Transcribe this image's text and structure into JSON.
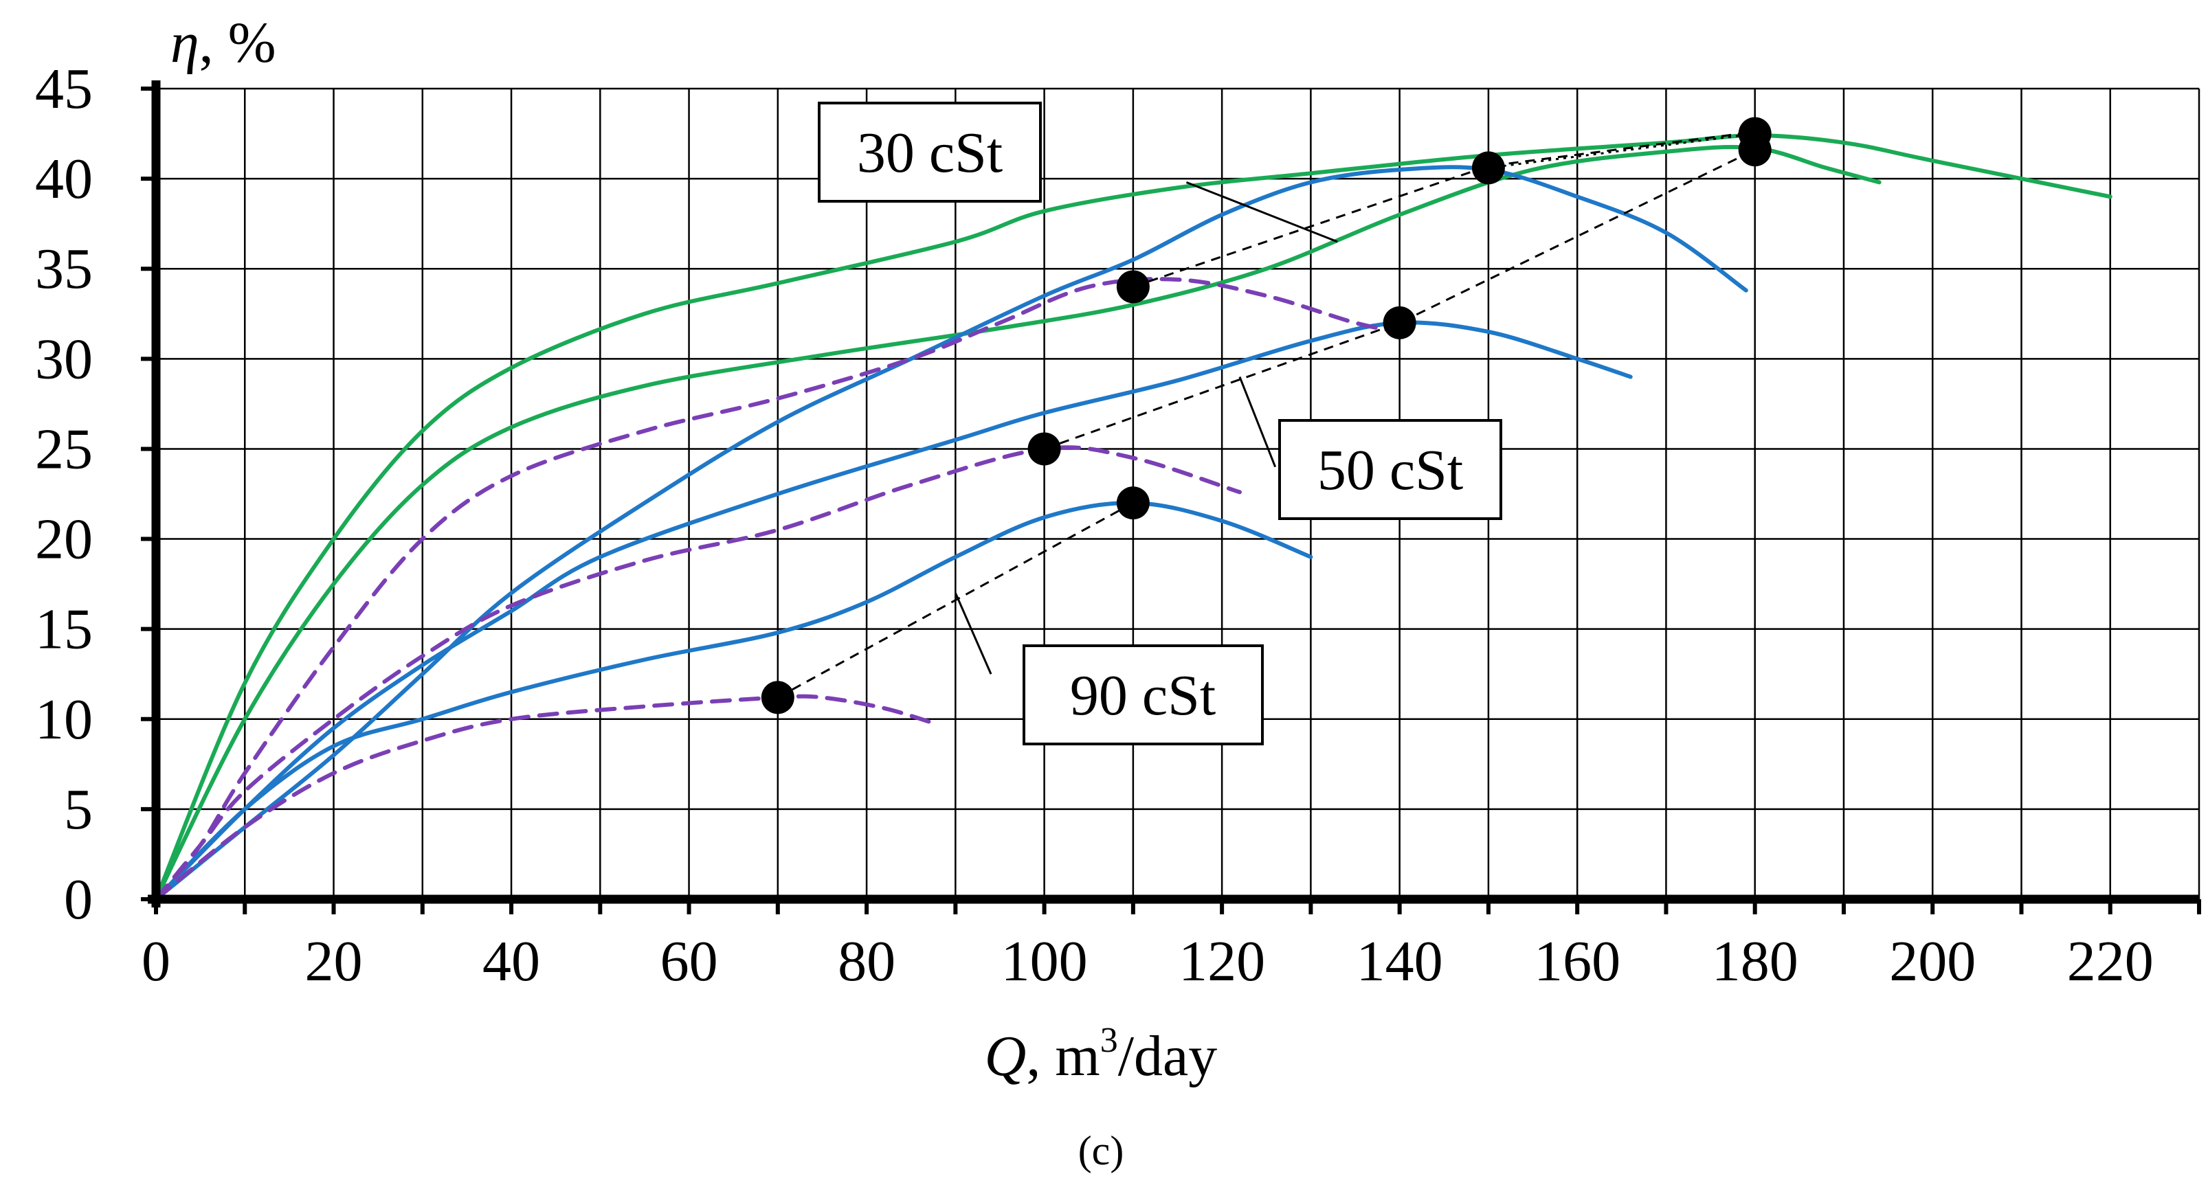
{
  "chart_data": {
    "type": "line",
    "title": "",
    "caption": "(c)",
    "ylabel_symbol": "η",
    "ylabel_unit": ", %",
    "xlabel_symbol": "Q",
    "xlabel_unit": ", m",
    "xlabel_sup": "3",
    "xlabel_tail": "/day",
    "xlim": [
      0,
      230
    ],
    "ylim": [
      0,
      45
    ],
    "x_ticks": [
      "0",
      "20",
      "40",
      "60",
      "80",
      "100",
      "120",
      "140",
      "160",
      "180",
      "200",
      "220"
    ],
    "y_ticks": [
      "0",
      "5",
      "10",
      "15",
      "20",
      "25",
      "30",
      "35",
      "40",
      "45"
    ],
    "grid": true,
    "colors": {
      "green": "#1aaa55",
      "blue": "#1f78c8",
      "purple": "#7a3fb5",
      "black": "#000000"
    },
    "series": [
      {
        "name": "green-1",
        "style": "solid",
        "color": "green",
        "points": [
          [
            0,
            0
          ],
          [
            10,
            12
          ],
          [
            20,
            20
          ],
          [
            30,
            26
          ],
          [
            40,
            29.5
          ],
          [
            55,
            32.5
          ],
          [
            70,
            34.2
          ],
          [
            90,
            36.5
          ],
          [
            100,
            38.2
          ],
          [
            115,
            39.5
          ],
          [
            130,
            40.3
          ],
          [
            150,
            41.3
          ],
          [
            170,
            42
          ],
          [
            180,
            42.4
          ],
          [
            190,
            42
          ],
          [
            200,
            41
          ],
          [
            220,
            39
          ]
        ]
      },
      {
        "name": "green-2",
        "style": "solid",
        "color": "green",
        "points": [
          [
            0,
            0
          ],
          [
            10,
            10
          ],
          [
            20,
            17.5
          ],
          [
            30,
            23
          ],
          [
            40,
            26.2
          ],
          [
            55,
            28.5
          ],
          [
            75,
            30.2
          ],
          [
            95,
            31.7
          ],
          [
            110,
            33
          ],
          [
            125,
            35
          ],
          [
            140,
            38
          ],
          [
            155,
            40.5
          ],
          [
            170,
            41.5
          ],
          [
            180,
            41.7
          ],
          [
            188,
            40.6
          ],
          [
            194,
            39.8
          ]
        ]
      },
      {
        "name": "blue-30",
        "style": "solid",
        "color": "blue",
        "points": [
          [
            0,
            0
          ],
          [
            10,
            4
          ],
          [
            20,
            8
          ],
          [
            30,
            12.5
          ],
          [
            40,
            17
          ],
          [
            55,
            22
          ],
          [
            70,
            26.5
          ],
          [
            85,
            30
          ],
          [
            100,
            33.5
          ],
          [
            110,
            35.5
          ],
          [
            120,
            38
          ],
          [
            130,
            39.8
          ],
          [
            140,
            40.5
          ],
          [
            150,
            40.5
          ],
          [
            160,
            39
          ],
          [
            170,
            37
          ],
          [
            179,
            33.8
          ]
        ]
      },
      {
        "name": "blue-50",
        "style": "solid",
        "color": "blue",
        "points": [
          [
            0,
            0
          ],
          [
            10,
            5
          ],
          [
            20,
            9.5
          ],
          [
            30,
            13
          ],
          [
            40,
            16
          ],
          [
            50,
            19
          ],
          [
            70,
            22.5
          ],
          [
            90,
            25.5
          ],
          [
            100,
            27
          ],
          [
            115,
            28.8
          ],
          [
            130,
            31
          ],
          [
            140,
            32
          ],
          [
            150,
            31.5
          ],
          [
            160,
            30
          ],
          [
            166,
            29
          ]
        ]
      },
      {
        "name": "blue-90",
        "style": "solid",
        "color": "blue",
        "points": [
          [
            0,
            0
          ],
          [
            10,
            5
          ],
          [
            20,
            8.5
          ],
          [
            30,
            10
          ],
          [
            40,
            11.5
          ],
          [
            55,
            13.3
          ],
          [
            70,
            14.8
          ],
          [
            80,
            16.5
          ],
          [
            90,
            19
          ],
          [
            100,
            21.2
          ],
          [
            110,
            22
          ],
          [
            120,
            21
          ],
          [
            130,
            19
          ]
        ]
      },
      {
        "name": "purple-30",
        "style": "dashed",
        "color": "purple",
        "points": [
          [
            0,
            0
          ],
          [
            5,
            3
          ],
          [
            10,
            7
          ],
          [
            20,
            14
          ],
          [
            30,
            20
          ],
          [
            40,
            23.5
          ],
          [
            55,
            26
          ],
          [
            70,
            27.8
          ],
          [
            85,
            30
          ],
          [
            95,
            32
          ],
          [
            105,
            34
          ],
          [
            115,
            34.4
          ],
          [
            125,
            33.5
          ],
          [
            135,
            32
          ],
          [
            140,
            31.5
          ]
        ]
      },
      {
        "name": "purple-50",
        "style": "dashed",
        "color": "purple",
        "points": [
          [
            0,
            0
          ],
          [
            5,
            3
          ],
          [
            10,
            6
          ],
          [
            20,
            10
          ],
          [
            30,
            13.5
          ],
          [
            40,
            16.3
          ],
          [
            55,
            18.8
          ],
          [
            70,
            20.5
          ],
          [
            85,
            23
          ],
          [
            100,
            25
          ],
          [
            110,
            24.5
          ],
          [
            122,
            22.6
          ]
        ]
      },
      {
        "name": "purple-90",
        "style": "dashed",
        "color": "purple",
        "points": [
          [
            0,
            0
          ],
          [
            10,
            4
          ],
          [
            20,
            7
          ],
          [
            30,
            8.8
          ],
          [
            40,
            10
          ],
          [
            55,
            10.7
          ],
          [
            70,
            11.2
          ],
          [
            75,
            11.2
          ],
          [
            82,
            10.6
          ],
          [
            88,
            9.7
          ]
        ]
      }
    ],
    "dashed_lines": [
      {
        "name": "bep-line-30",
        "style": "dashed",
        "points": [
          [
            110,
            34
          ],
          [
            150,
            40.7
          ],
          [
            180,
            42.6
          ]
        ]
      },
      {
        "name": "bep-line-50",
        "style": "dashed",
        "points": [
          [
            100,
            25
          ],
          [
            140,
            32
          ],
          [
            180,
            41.6
          ]
        ]
      },
      {
        "name": "bep-line-90",
        "style": "dashed",
        "points": [
          [
            70,
            11.2
          ],
          [
            110,
            22
          ]
        ]
      },
      {
        "name": "bep-line-dotted",
        "style": "dotted",
        "points": [
          [
            150,
            40.6
          ],
          [
            180,
            42.5
          ]
        ]
      }
    ],
    "markers": [
      [
        70,
        11.2
      ],
      [
        100,
        25
      ],
      [
        110,
        22
      ],
      [
        110,
        34
      ],
      [
        140,
        32
      ],
      [
        150,
        40.6
      ],
      [
        180,
        42.5
      ],
      [
        180,
        41.6
      ]
    ],
    "annotations": [
      {
        "label": "30 cSt",
        "leader": [
          [
            133,
            36.5
          ],
          [
            116,
            39.8
          ]
        ]
      },
      {
        "label": "50 cSt",
        "leader": [
          [
            122,
            29
          ],
          [
            126,
            24
          ]
        ]
      },
      {
        "label": "90 cSt",
        "leader": [
          [
            90,
            17
          ],
          [
            94,
            12.5
          ]
        ]
      }
    ]
  }
}
